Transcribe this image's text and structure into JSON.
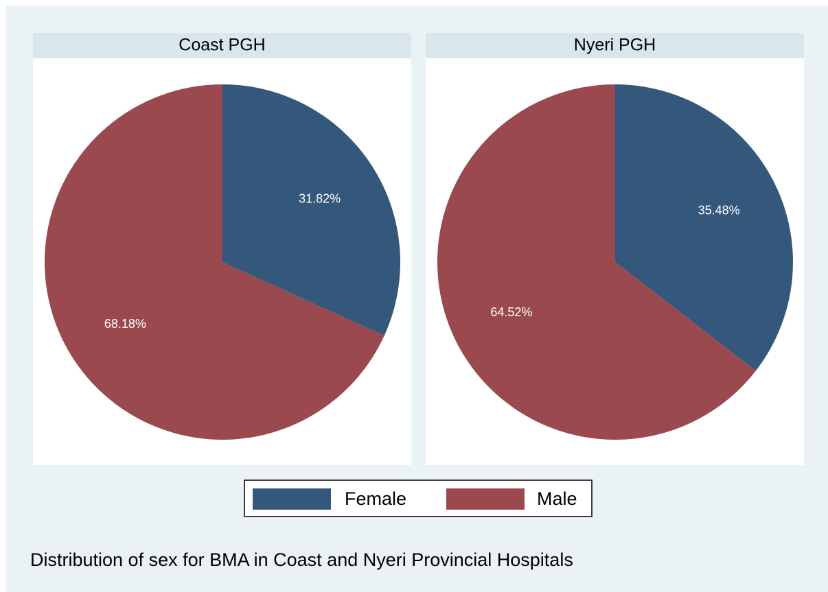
{
  "chart_data": [
    {
      "type": "pie",
      "title": "Coast PGH",
      "categories": [
        "Female",
        "Male"
      ],
      "values": [
        31.82,
        68.18
      ],
      "value_labels": [
        "31.82%",
        "68.18%"
      ],
      "colors": [
        "#34587c",
        "#9a4a4f"
      ]
    },
    {
      "type": "pie",
      "title": "Nyeri PGH",
      "categories": [
        "Female",
        "Male"
      ],
      "values": [
        35.48,
        64.52
      ],
      "value_labels": [
        "35.48%",
        "64.52%"
      ],
      "colors": [
        "#34587c",
        "#9a4a4f"
      ]
    }
  ],
  "caption": "Distribution of sex for BMA in Coast and Nyeri Provincial Hospitals"
}
